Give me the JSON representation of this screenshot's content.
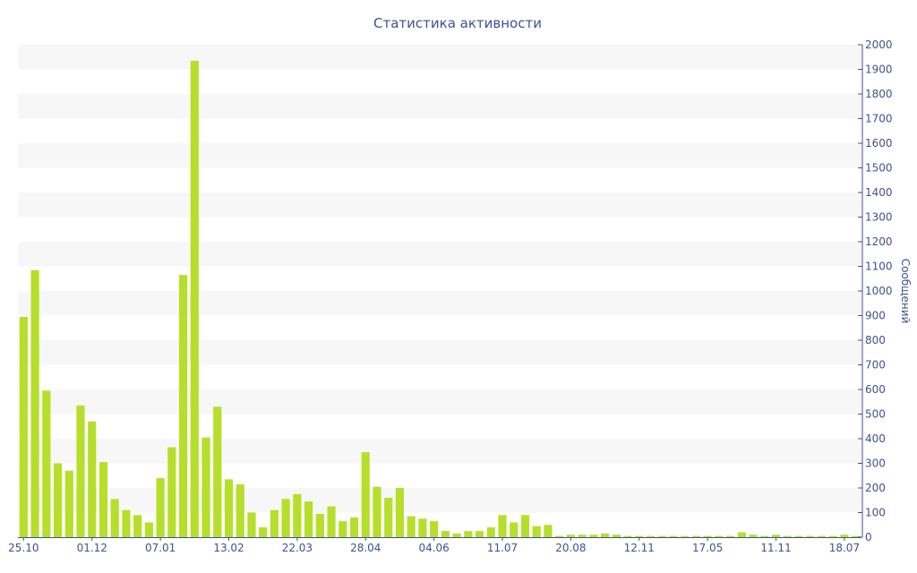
{
  "chart_data": {
    "type": "bar",
    "title": "Статистика активности",
    "xlabel": "",
    "ylabel": "Сообщений",
    "ylim": [
      0,
      2000
    ],
    "y_ticks": [
      0,
      100,
      200,
      300,
      400,
      500,
      600,
      700,
      800,
      900,
      1000,
      1100,
      1200,
      1300,
      1400,
      1500,
      1600,
      1700,
      1800,
      1900,
      2000
    ],
    "y_axis_side": "right",
    "x_tick_labels": [
      {
        "label": "25.10",
        "index": 0
      },
      {
        "label": "01.12",
        "index": 6
      },
      {
        "label": "07.01",
        "index": 12
      },
      {
        "label": "13.02",
        "index": 18
      },
      {
        "label": "22.03",
        "index": 24
      },
      {
        "label": "28.04",
        "index": 30
      },
      {
        "label": "04.06",
        "index": 36
      },
      {
        "label": "11.07",
        "index": 42
      },
      {
        "label": "20.08",
        "index": 48
      },
      {
        "label": "12.11",
        "index": 54
      },
      {
        "label": "17.05",
        "index": 60
      },
      {
        "label": "11.11",
        "index": 66
      },
      {
        "label": "18.07",
        "index": 72
      }
    ],
    "values": [
      895,
      1085,
      595,
      300,
      270,
      535,
      470,
      305,
      155,
      110,
      90,
      60,
      240,
      365,
      1065,
      1935,
      405,
      530,
      235,
      215,
      100,
      40,
      110,
      155,
      175,
      145,
      95,
      125,
      65,
      80,
      345,
      205,
      160,
      200,
      85,
      75,
      65,
      25,
      15,
      25,
      25,
      40,
      90,
      60,
      90,
      45,
      50,
      5,
      10,
      10,
      10,
      15,
      10,
      5,
      5,
      5,
      5,
      5,
      5,
      5,
      5,
      5,
      5,
      20,
      10,
      5,
      10,
      5,
      5,
      5,
      5,
      5,
      10,
      5
    ],
    "bar_color": "#b7de2b",
    "band_color": "#f7f7f7",
    "text_color": "#3f5190",
    "grid": true,
    "legend": "none"
  }
}
